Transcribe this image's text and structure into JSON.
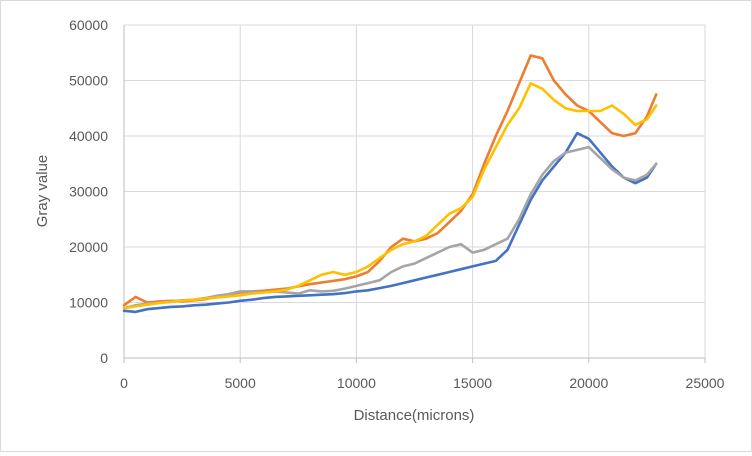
{
  "chart_data": {
    "type": "line",
    "title": "",
    "xlabel": "Distance(microns)",
    "ylabel": "Gray value",
    "xlim": [
      0,
      25000
    ],
    "ylim": [
      0,
      60000
    ],
    "xticks": [
      0,
      5000,
      10000,
      15000,
      20000,
      25000
    ],
    "yticks": [
      0,
      10000,
      20000,
      30000,
      40000,
      50000,
      60000
    ],
    "xtick_labels": [
      "0",
      "5000",
      "10000",
      "15000",
      "20000",
      "25000"
    ],
    "ytick_labels": [
      "0",
      "10000",
      "20000",
      "30000",
      "40000",
      "50000",
      "60000"
    ],
    "grid": true,
    "legend": "none",
    "series": [
      {
        "color": "#4472c4",
        "x": [
          0,
          500,
          1000,
          1500,
          2000,
          2500,
          3000,
          3500,
          4000,
          4500,
          5000,
          5500,
          6000,
          6500,
          7000,
          7500,
          8000,
          8500,
          9000,
          9500,
          10000,
          10500,
          11000,
          11500,
          12000,
          12500,
          13000,
          13500,
          14000,
          14500,
          15000,
          15500,
          16000,
          16500,
          17000,
          17500,
          18000,
          18500,
          19000,
          19500,
          20000,
          20500,
          21000,
          21500,
          22000,
          22500,
          22900
        ],
        "y": [
          8500,
          8300,
          8800,
          9000,
          9200,
          9300,
          9500,
          9600,
          9800,
          10000,
          10300,
          10500,
          10800,
          11000,
          11100,
          11200,
          11300,
          11400,
          11500,
          11700,
          12000,
          12200,
          12600,
          13000,
          13500,
          14000,
          14500,
          15000,
          15500,
          16000,
          16500,
          17000,
          17500,
          19500,
          24000,
          28500,
          32000,
          34500,
          37000,
          40500,
          39500,
          37000,
          34500,
          32500,
          31500,
          32500,
          35000
        ]
      },
      {
        "color": "#ed7d31",
        "x": [
          0,
          500,
          1000,
          1500,
          2000,
          2500,
          3000,
          3500,
          4000,
          4500,
          5000,
          5500,
          6000,
          6500,
          7000,
          7500,
          8000,
          8500,
          9000,
          9500,
          10000,
          10500,
          11000,
          11500,
          12000,
          12500,
          13000,
          13500,
          14000,
          14500,
          15000,
          15500,
          16000,
          16500,
          17000,
          17500,
          18000,
          18500,
          19000,
          19500,
          20000,
          20500,
          21000,
          21500,
          22000,
          22500,
          22900
        ],
        "y": [
          9500,
          11000,
          10000,
          10200,
          10300,
          10200,
          10400,
          10600,
          11000,
          11500,
          11800,
          12000,
          12100,
          12300,
          12500,
          12900,
          13300,
          13600,
          13900,
          14200,
          14700,
          15500,
          17500,
          20000,
          21500,
          21000,
          21500,
          22500,
          24500,
          26500,
          29500,
          35000,
          40000,
          44500,
          49500,
          54500,
          54000,
          50000,
          47500,
          45500,
          44500,
          42500,
          40500,
          40000,
          40500,
          43500,
          47500
        ]
      },
      {
        "color": "#a5a5a5",
        "x": [
          0,
          500,
          1000,
          1500,
          2000,
          2500,
          3000,
          3500,
          4000,
          4500,
          5000,
          5500,
          6000,
          6500,
          7000,
          7500,
          8000,
          8500,
          9000,
          9500,
          10000,
          10500,
          11000,
          11500,
          12000,
          12500,
          13000,
          13500,
          14000,
          14500,
          15000,
          15500,
          16000,
          16500,
          17000,
          17500,
          18000,
          18500,
          19000,
          19500,
          20000,
          20500,
          21000,
          21500,
          22000,
          22500,
          22900
        ],
        "y": [
          9000,
          9500,
          9800,
          10000,
          10200,
          10400,
          10500,
          10800,
          11200,
          11500,
          12000,
          12000,
          11800,
          12000,
          11800,
          11600,
          12200,
          12000,
          12100,
          12500,
          13000,
          13500,
          14000,
          15500,
          16500,
          17000,
          18000,
          19000,
          20000,
          20500,
          19000,
          19500,
          20500,
          21500,
          25000,
          29500,
          33000,
          35500,
          37000,
          37500,
          38000,
          36000,
          34000,
          32500,
          32000,
          33000,
          35000
        ]
      },
      {
        "color": "#ffc000",
        "x": [
          0,
          500,
          1000,
          1500,
          2000,
          2500,
          3000,
          3500,
          4000,
          4500,
          5000,
          5500,
          6000,
          6500,
          7000,
          7500,
          8000,
          8500,
          9000,
          9500,
          10000,
          10500,
          11000,
          11500,
          12000,
          12500,
          13000,
          13500,
          14000,
          14500,
          15000,
          15500,
          16000,
          16500,
          17000,
          17500,
          18000,
          18500,
          19000,
          19500,
          20000,
          20500,
          21000,
          21500,
          22000,
          22500,
          22900
        ],
        "y": [
          9000,
          9300,
          9600,
          9900,
          10100,
          10300,
          10500,
          10700,
          10900,
          11100,
          11300,
          11600,
          11800,
          12000,
          12300,
          13000,
          14000,
          15000,
          15500,
          15000,
          15500,
          16500,
          18000,
          19500,
          20500,
          21000,
          22000,
          24000,
          26000,
          27000,
          29000,
          34000,
          38000,
          42000,
          45000,
          49500,
          48500,
          46500,
          45000,
          44500,
          44500,
          44500,
          45500,
          44000,
          42000,
          43000,
          45500
        ]
      }
    ]
  }
}
